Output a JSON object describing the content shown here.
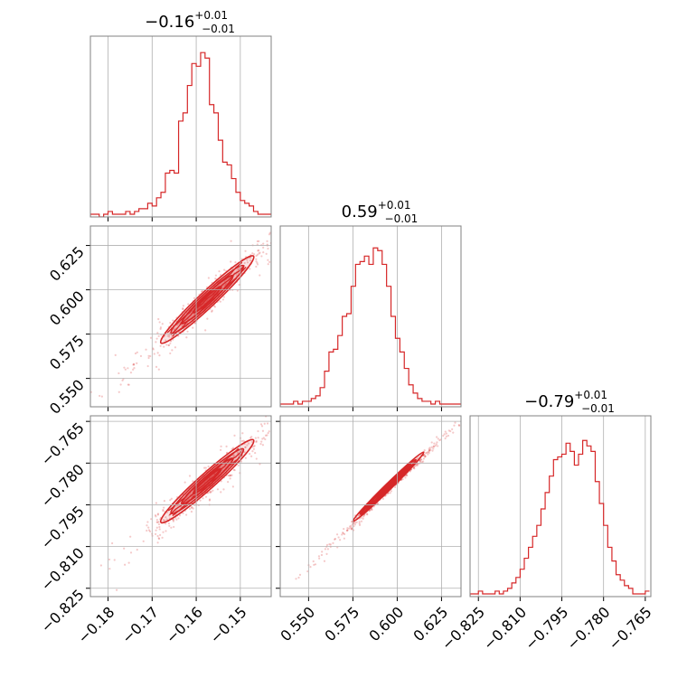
{
  "figure": {
    "type": "corner-plot",
    "color": "#d62728",
    "grid": true
  },
  "chart_data": [
    {
      "type": "histogram",
      "panel": "p00",
      "title_main": "−0.16",
      "title_sup": "+0.01",
      "title_sub": "−0.01",
      "x_range": [
        -0.184,
        -0.143
      ],
      "x_ticks": [
        -0.18,
        -0.17,
        -0.16,
        -0.15
      ],
      "bin_start": -0.184,
      "bin_width": 0.001,
      "counts": [
        1,
        1,
        0,
        1,
        2,
        1,
        1,
        1,
        2,
        1,
        2,
        3,
        3,
        5,
        4,
        7,
        9,
        16,
        17,
        16,
        35,
        38,
        48,
        56,
        55,
        60,
        58,
        41,
        38,
        28,
        20,
        19,
        14,
        9,
        6,
        5,
        4,
        2,
        1,
        1,
        1
      ],
      "ylim": [
        0,
        60
      ]
    },
    {
      "type": "histogram",
      "panel": "p11",
      "title_main": "0.59",
      "title_sup": "+0.01",
      "title_sub": "−0.01",
      "x_range": [
        0.534,
        0.636
      ],
      "x_ticks": [
        0.55,
        0.575,
        0.6,
        0.625
      ],
      "tick_labels": [
        "0.550",
        "0.575",
        "0.600",
        "0.625"
      ],
      "bin_start": 0.534,
      "bin_width": 0.0025,
      "counts": [
        1,
        1,
        1,
        2,
        1,
        2,
        2,
        3,
        4,
        7,
        13,
        20,
        21,
        26,
        33,
        34,
        44,
        52,
        53,
        55,
        52,
        58,
        57,
        52,
        44,
        33,
        25,
        20,
        14,
        8,
        5,
        3,
        2,
        2,
        1,
        2,
        1,
        1,
        1,
        1,
        1
      ],
      "ylim": [
        0,
        60
      ]
    },
    {
      "type": "histogram",
      "panel": "p22",
      "title_main": "−0.79",
      "title_sup": "+0.01",
      "title_sub": "−0.01",
      "x_range": [
        -0.828,
        -0.763
      ],
      "x_ticks": [
        -0.825,
        -0.81,
        -0.795,
        -0.78,
        -0.765
      ],
      "tick_labels": [
        "−0.825",
        "−0.810",
        "−0.795",
        "−0.780",
        "−0.765"
      ],
      "bin_start": -0.828,
      "bin_width": 0.0015,
      "counts": [
        1,
        1,
        2,
        1,
        1,
        1,
        2,
        1,
        2,
        3,
        5,
        7,
        10,
        14,
        18,
        22,
        26,
        32,
        38,
        44,
        50,
        51,
        52,
        56,
        53,
        48,
        52,
        57,
        55,
        53,
        42,
        34,
        26,
        18,
        13,
        8,
        6,
        4,
        3,
        1,
        1,
        1,
        2
      ],
      "ylim": [
        0,
        60
      ]
    },
    {
      "type": "scatter",
      "panel": "p10",
      "description_axes": "x=param0, y=param1",
      "x_range": [
        -0.184,
        -0.143
      ],
      "y_range": [
        0.534,
        0.636
      ],
      "y_ticks": [
        0.55,
        0.575,
        0.6,
        0.625
      ],
      "y_tick_labels": [
        "0.550",
        "0.575",
        "0.600",
        "0.625"
      ],
      "correlation_line": {
        "x": [
          -0.182,
          -0.143
        ],
        "y": [
          0.537,
          0.628
        ]
      },
      "contour_center": [
        -0.1575,
        0.5945
      ],
      "contour_span_x": [
        -0.168,
        -0.147
      ]
    },
    {
      "type": "scatter",
      "panel": "p20",
      "x_range": [
        -0.184,
        -0.143
      ],
      "y_range": [
        -0.828,
        -0.763
      ],
      "y_ticks": [
        -0.825,
        -0.81,
        -0.795,
        -0.78,
        -0.765
      ],
      "y_tick_labels": [
        "−0.825",
        "−0.810",
        "−0.795",
        "−0.780",
        "−0.765"
      ],
      "x_tick_labels": [
        "−0.18",
        "−0.17",
        "−0.16",
        "−0.15"
      ],
      "correlation_line": {
        "x": [
          -0.182,
          -0.143
        ],
        "y": [
          -0.822,
          -0.767
        ]
      },
      "contour_center": [
        -0.1575,
        -0.7865
      ],
      "contour_span_x": [
        -0.168,
        -0.147
      ]
    },
    {
      "type": "scatter",
      "panel": "p21",
      "x_range": [
        0.534,
        0.636
      ],
      "y_range": [
        -0.828,
        -0.763
      ],
      "correlation_line": {
        "x": [
          0.543,
          0.636
        ],
        "y": [
          -0.822,
          -0.764
        ]
      },
      "contour_center": [
        0.595,
        -0.7885
      ],
      "contour_span_x": [
        0.571,
        0.611
      ]
    }
  ]
}
